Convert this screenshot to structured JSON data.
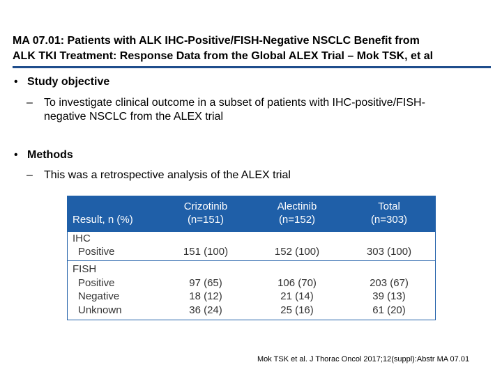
{
  "slide": {
    "title_line1": "MA 07.01: Patients with ALK IHC-Positive/FISH-Negative NSCLC Benefit from",
    "title_line2": "ALK TKI Treatment: Response Data from the Global ALEX Trial – Mok TSK, et al",
    "accent_color": "#1f5fa8"
  },
  "sections": [
    {
      "heading": "Study objective",
      "bullet_symbol": "•",
      "sub_symbol": "–",
      "sub_line1": "To investigate clinical outcome in a subset of patients with IHC-positive/FISH-",
      "sub_line2": "negative NSCLC from the ALEX trial"
    },
    {
      "heading": "Methods",
      "bullet_symbol": "•",
      "sub_symbol": "–",
      "sub_line1": "This was a retrospective analysis of the ALEX trial"
    }
  ],
  "table": {
    "header": {
      "result": "Result, n (%)",
      "col1_name": "Crizotinib",
      "col1_n": "(n=151)",
      "col2_name": "Alectinib",
      "col2_n": "(n=152)",
      "col3_name": "Total",
      "col3_n": "(n=303)"
    },
    "ihc": {
      "label": "IHC",
      "rows": [
        {
          "label": "Positive",
          "crizotinib": "151 (100)",
          "alectinib": "152 (100)",
          "total": "303 (100)"
        }
      ]
    },
    "fish": {
      "label": "FISH",
      "rows": [
        {
          "label": "Positive",
          "crizotinib": "97 (65)",
          "alectinib": "106 (70)",
          "total": "203 (67)"
        },
        {
          "label": "Negative",
          "crizotinib": "18 (12)",
          "alectinib": "21 (14)",
          "total": "39 (13)"
        },
        {
          "label": "Unknown",
          "crizotinib": "36 (24)",
          "alectinib": "25 (16)",
          "total": "61 (20)"
        }
      ]
    }
  },
  "citation": "Mok TSK et al. J Thorac Oncol 2017;12(suppl):Abstr MA 07.01"
}
